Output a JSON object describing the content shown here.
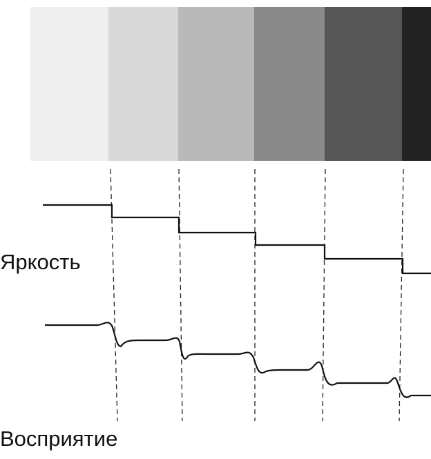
{
  "labels": {
    "brightness": "Яркость",
    "perception": "Восприятие"
  }
}
